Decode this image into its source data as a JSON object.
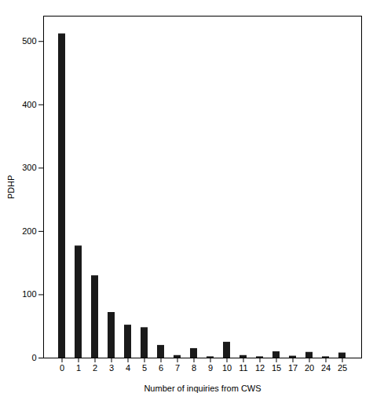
{
  "chart_data": {
    "type": "bar",
    "categories": [
      0,
      1,
      2,
      3,
      4,
      5,
      6,
      7,
      8,
      9,
      10,
      11,
      12,
      15,
      17,
      20,
      24,
      25
    ],
    "values": [
      512,
      177,
      130,
      72,
      52,
      48,
      20,
      4,
      15,
      2,
      25,
      4,
      2,
      10,
      3,
      9,
      2,
      8
    ],
    "color": "#1a1a1a",
    "xlabel": "Number of inquiries from CWS",
    "ylabel": "PDHP",
    "ylim": [
      0,
      540
    ],
    "yticks": [
      0,
      100,
      200,
      300,
      400,
      500
    ],
    "grid": false
  }
}
